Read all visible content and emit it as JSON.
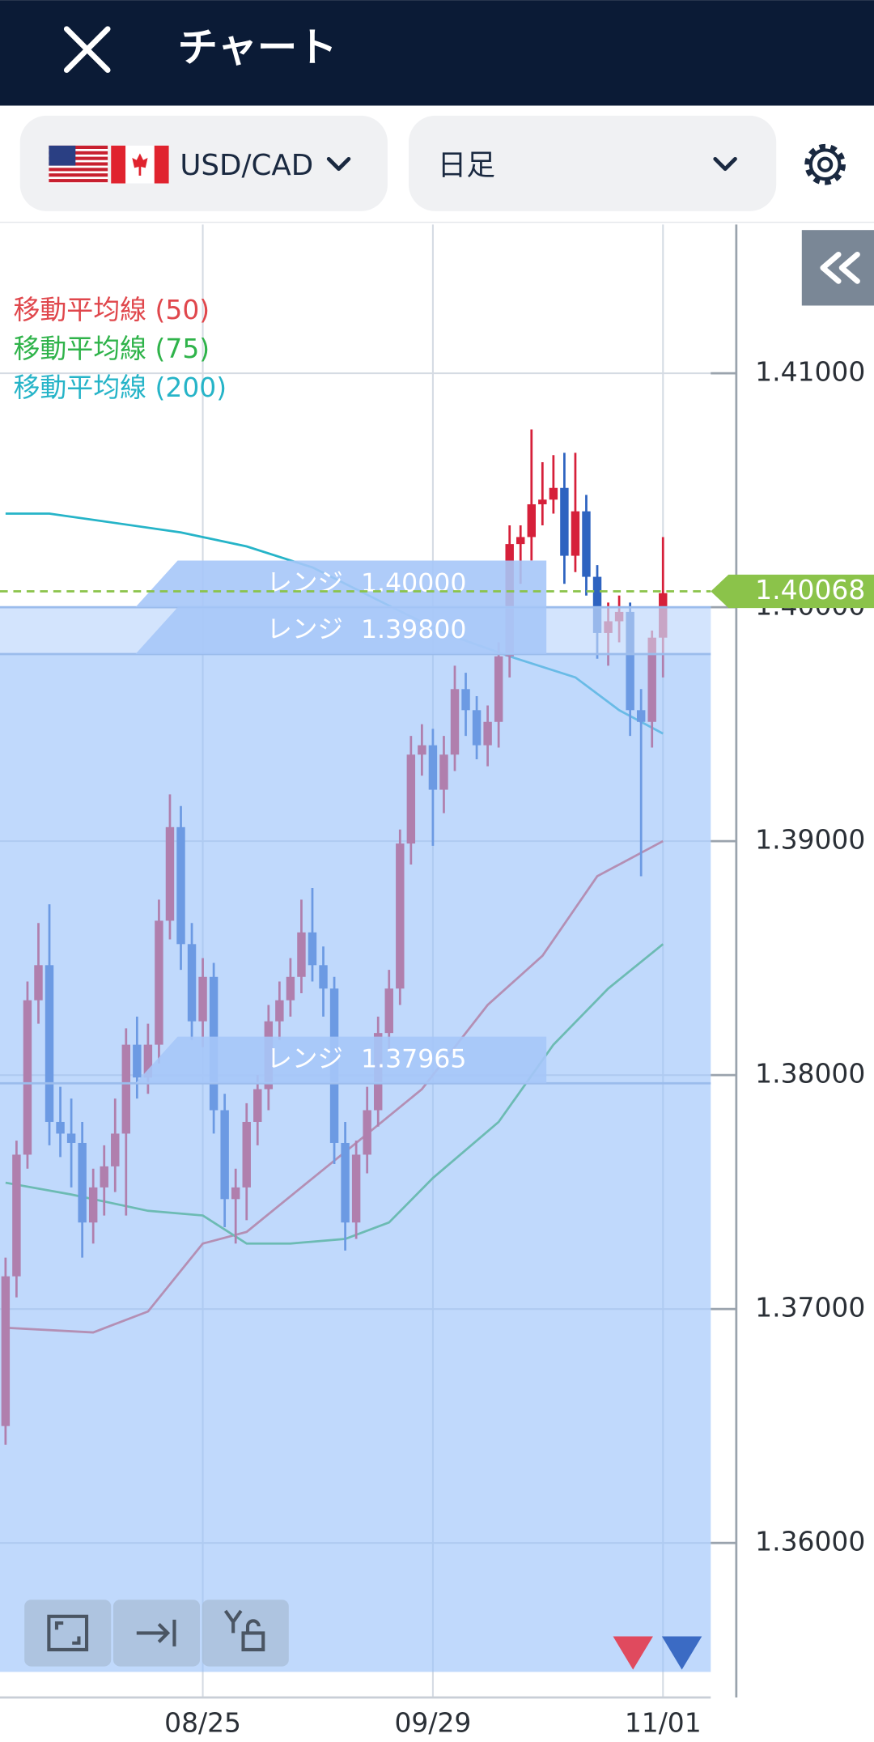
{
  "header": {
    "title": "チャート"
  },
  "toolbar": {
    "pair": "USD/CAD",
    "timeframe": "日足"
  },
  "chart_data": {
    "type": "candlestick",
    "categories": [
      null,
      null,
      null,
      null,
      null,
      null,
      null,
      null,
      null,
      null,
      null,
      null,
      null,
      null,
      null,
      null,
      null,
      null,
      "08/25",
      null,
      null,
      null,
      null,
      null,
      null,
      null,
      null,
      null,
      null,
      null,
      null,
      null,
      null,
      null,
      null,
      null,
      null,
      null,
      null,
      "09/29",
      null,
      null,
      null,
      null,
      null,
      null,
      null,
      null,
      null,
      null,
      null,
      null,
      null,
      null,
      null,
      null,
      null,
      null,
      null,
      null,
      "11/01"
    ],
    "ohlc": [
      [
        1.365,
        1.3722,
        1.3642,
        1.3714
      ],
      [
        1.3714,
        1.3772,
        1.3705,
        1.3766
      ],
      [
        1.3766,
        1.384,
        1.376,
        1.3832
      ],
      [
        1.3832,
        1.3865,
        1.3822,
        1.3847
      ],
      [
        1.3847,
        1.3873,
        1.377,
        1.378
      ],
      [
        1.378,
        1.3795,
        1.3765,
        1.3775
      ],
      [
        1.3775,
        1.379,
        1.3752,
        1.3771
      ],
      [
        1.3771,
        1.378,
        1.3722,
        1.3737
      ],
      [
        1.3737,
        1.376,
        1.3728,
        1.3752
      ],
      [
        1.3752,
        1.377,
        1.374,
        1.3761
      ],
      [
        1.3761,
        1.379,
        1.375,
        1.3775
      ],
      [
        1.3775,
        1.382,
        1.374,
        1.3813
      ],
      [
        1.3813,
        1.3825,
        1.379,
        1.3799
      ],
      [
        1.3799,
        1.3822,
        1.3792,
        1.3813
      ],
      [
        1.3813,
        1.3875,
        1.3805,
        1.3866
      ],
      [
        1.3866,
        1.392,
        1.3858,
        1.3906
      ],
      [
        1.3906,
        1.3915,
        1.3845,
        1.3856
      ],
      [
        1.3856,
        1.3865,
        1.3815,
        1.3823
      ],
      [
        1.3823,
        1.385,
        1.3812,
        1.3842
      ],
      [
        1.3842,
        1.3848,
        1.3775,
        1.3785
      ],
      [
        1.3785,
        1.3792,
        1.3735,
        1.3747
      ],
      [
        1.3747,
        1.376,
        1.3728,
        1.3752
      ],
      [
        1.3752,
        1.3788,
        1.3738,
        1.378
      ],
      [
        1.378,
        1.38,
        1.377,
        1.3794
      ],
      [
        1.3794,
        1.383,
        1.3785,
        1.3823
      ],
      [
        1.3823,
        1.384,
        1.3815,
        1.3832
      ],
      [
        1.3832,
        1.385,
        1.3825,
        1.3842
      ],
      [
        1.3842,
        1.3875,
        1.3835,
        1.3861
      ],
      [
        1.3861,
        1.388,
        1.384,
        1.3847
      ],
      [
        1.3847,
        1.3855,
        1.3825,
        1.3837
      ],
      [
        1.3837,
        1.3842,
        1.3762,
        1.3771
      ],
      [
        1.3771,
        1.378,
        1.3725,
        1.3737
      ],
      [
        1.3737,
        1.3772,
        1.373,
        1.3766
      ],
      [
        1.3766,
        1.3795,
        1.3758,
        1.3785
      ],
      [
        1.3785,
        1.3825,
        1.3778,
        1.3818
      ],
      [
        1.3818,
        1.3845,
        1.381,
        1.3837
      ],
      [
        1.3837,
        1.3905,
        1.383,
        1.3899
      ],
      [
        1.3899,
        1.3945,
        1.389,
        1.3937
      ],
      [
        1.3937,
        1.395,
        1.3928,
        1.3941
      ],
      [
        1.3941,
        1.3948,
        1.3898,
        1.3922
      ],
      [
        1.3922,
        1.3945,
        1.3912,
        1.3937
      ],
      [
        1.3937,
        1.3975,
        1.393,
        1.3965
      ],
      [
        1.3965,
        1.3972,
        1.3945,
        1.3956
      ],
      [
        1.3956,
        1.3962,
        1.3935,
        1.3941
      ],
      [
        1.3941,
        1.3958,
        1.3932,
        1.3951
      ],
      [
        1.3951,
        1.3985,
        1.394,
        1.3979
      ],
      [
        1.3979,
        1.4035,
        1.397,
        1.4027
      ],
      [
        1.4027,
        1.4035,
        1.401,
        1.403
      ],
      [
        1.403,
        1.4076,
        1.402,
        1.4044
      ],
      [
        1.4044,
        1.4062,
        1.4035,
        1.4046
      ],
      [
        1.4046,
        1.4065,
        1.404,
        1.4051
      ],
      [
        1.4051,
        1.4066,
        1.401,
        1.4022
      ],
      [
        1.4022,
        1.4066,
        1.4015,
        1.4041
      ],
      [
        1.4041,
        1.4048,
        1.4005,
        1.4013
      ],
      [
        1.4013,
        1.4018,
        1.3978,
        1.3989
      ],
      [
        1.3989,
        1.4002,
        1.3975,
        1.3994
      ],
      [
        1.3994,
        1.4005,
        1.3985,
        1.3998
      ],
      [
        1.3998,
        1.4002,
        1.3945,
        1.3956
      ],
      [
        1.3956,
        1.3965,
        1.3885,
        1.3951
      ],
      [
        1.3951,
        1.399,
        1.394,
        1.3987
      ],
      [
        1.3987,
        1.403,
        1.397,
        1.4006
      ]
    ],
    "up_color": "#d6203a",
    "down_color": "#2e63c0",
    "series": [
      {
        "name": "移動平均線 (50)",
        "color": "#e0474c",
        "x": [
          0,
          8,
          13,
          18,
          22,
          27,
          32,
          38,
          44,
          49,
          54,
          60
        ],
        "values": [
          1.3692,
          1.369,
          1.3699,
          1.3728,
          1.3733,
          1.3752,
          1.3771,
          1.3794,
          1.383,
          1.3851,
          1.3885,
          1.39
        ]
      },
      {
        "name": "移動平均線 (75)",
        "color": "#2fb34a",
        "x": [
          0,
          6,
          13,
          18,
          22,
          26,
          31,
          35,
          39,
          45,
          50,
          55,
          60
        ],
        "values": [
          1.3754,
          1.3749,
          1.3742,
          1.374,
          1.3728,
          1.3728,
          1.373,
          1.3737,
          1.3756,
          1.378,
          1.3813,
          1.3837,
          1.3856
        ]
      },
      {
        "name": "移動平均線 (200)",
        "color": "#26b4c8",
        "x": [
          0,
          4,
          10,
          16,
          22,
          28,
          34,
          40,
          46,
          52,
          56,
          60
        ],
        "values": [
          1.404,
          1.404,
          1.4036,
          1.4032,
          1.4026,
          1.4017,
          1.4003,
          1.3989,
          1.3979,
          1.397,
          1.3956,
          1.3946
        ]
      }
    ],
    "ranges": {
      "label": "レンジ",
      "values": [
        1.4,
        1.398,
        1.37965
      ],
      "value_labels": [
        "1.40000",
        "1.39800",
        "1.37965"
      ]
    },
    "current": {
      "value": 1.40068,
      "label": "1.40068"
    },
    "ylim": [
      1.35449,
      1.41636
    ],
    "yticks": [
      {
        "value": 1.36,
        "label": "1.36000"
      },
      {
        "value": 1.37,
        "label": "1.37000"
      },
      {
        "value": 1.38,
        "label": "1.38000"
      },
      {
        "value": 1.39,
        "label": "1.39000"
      },
      {
        "value": 1.4,
        "label": "1.40000"
      },
      {
        "value": 1.41,
        "label": "1.41000"
      }
    ],
    "grid": true
  }
}
